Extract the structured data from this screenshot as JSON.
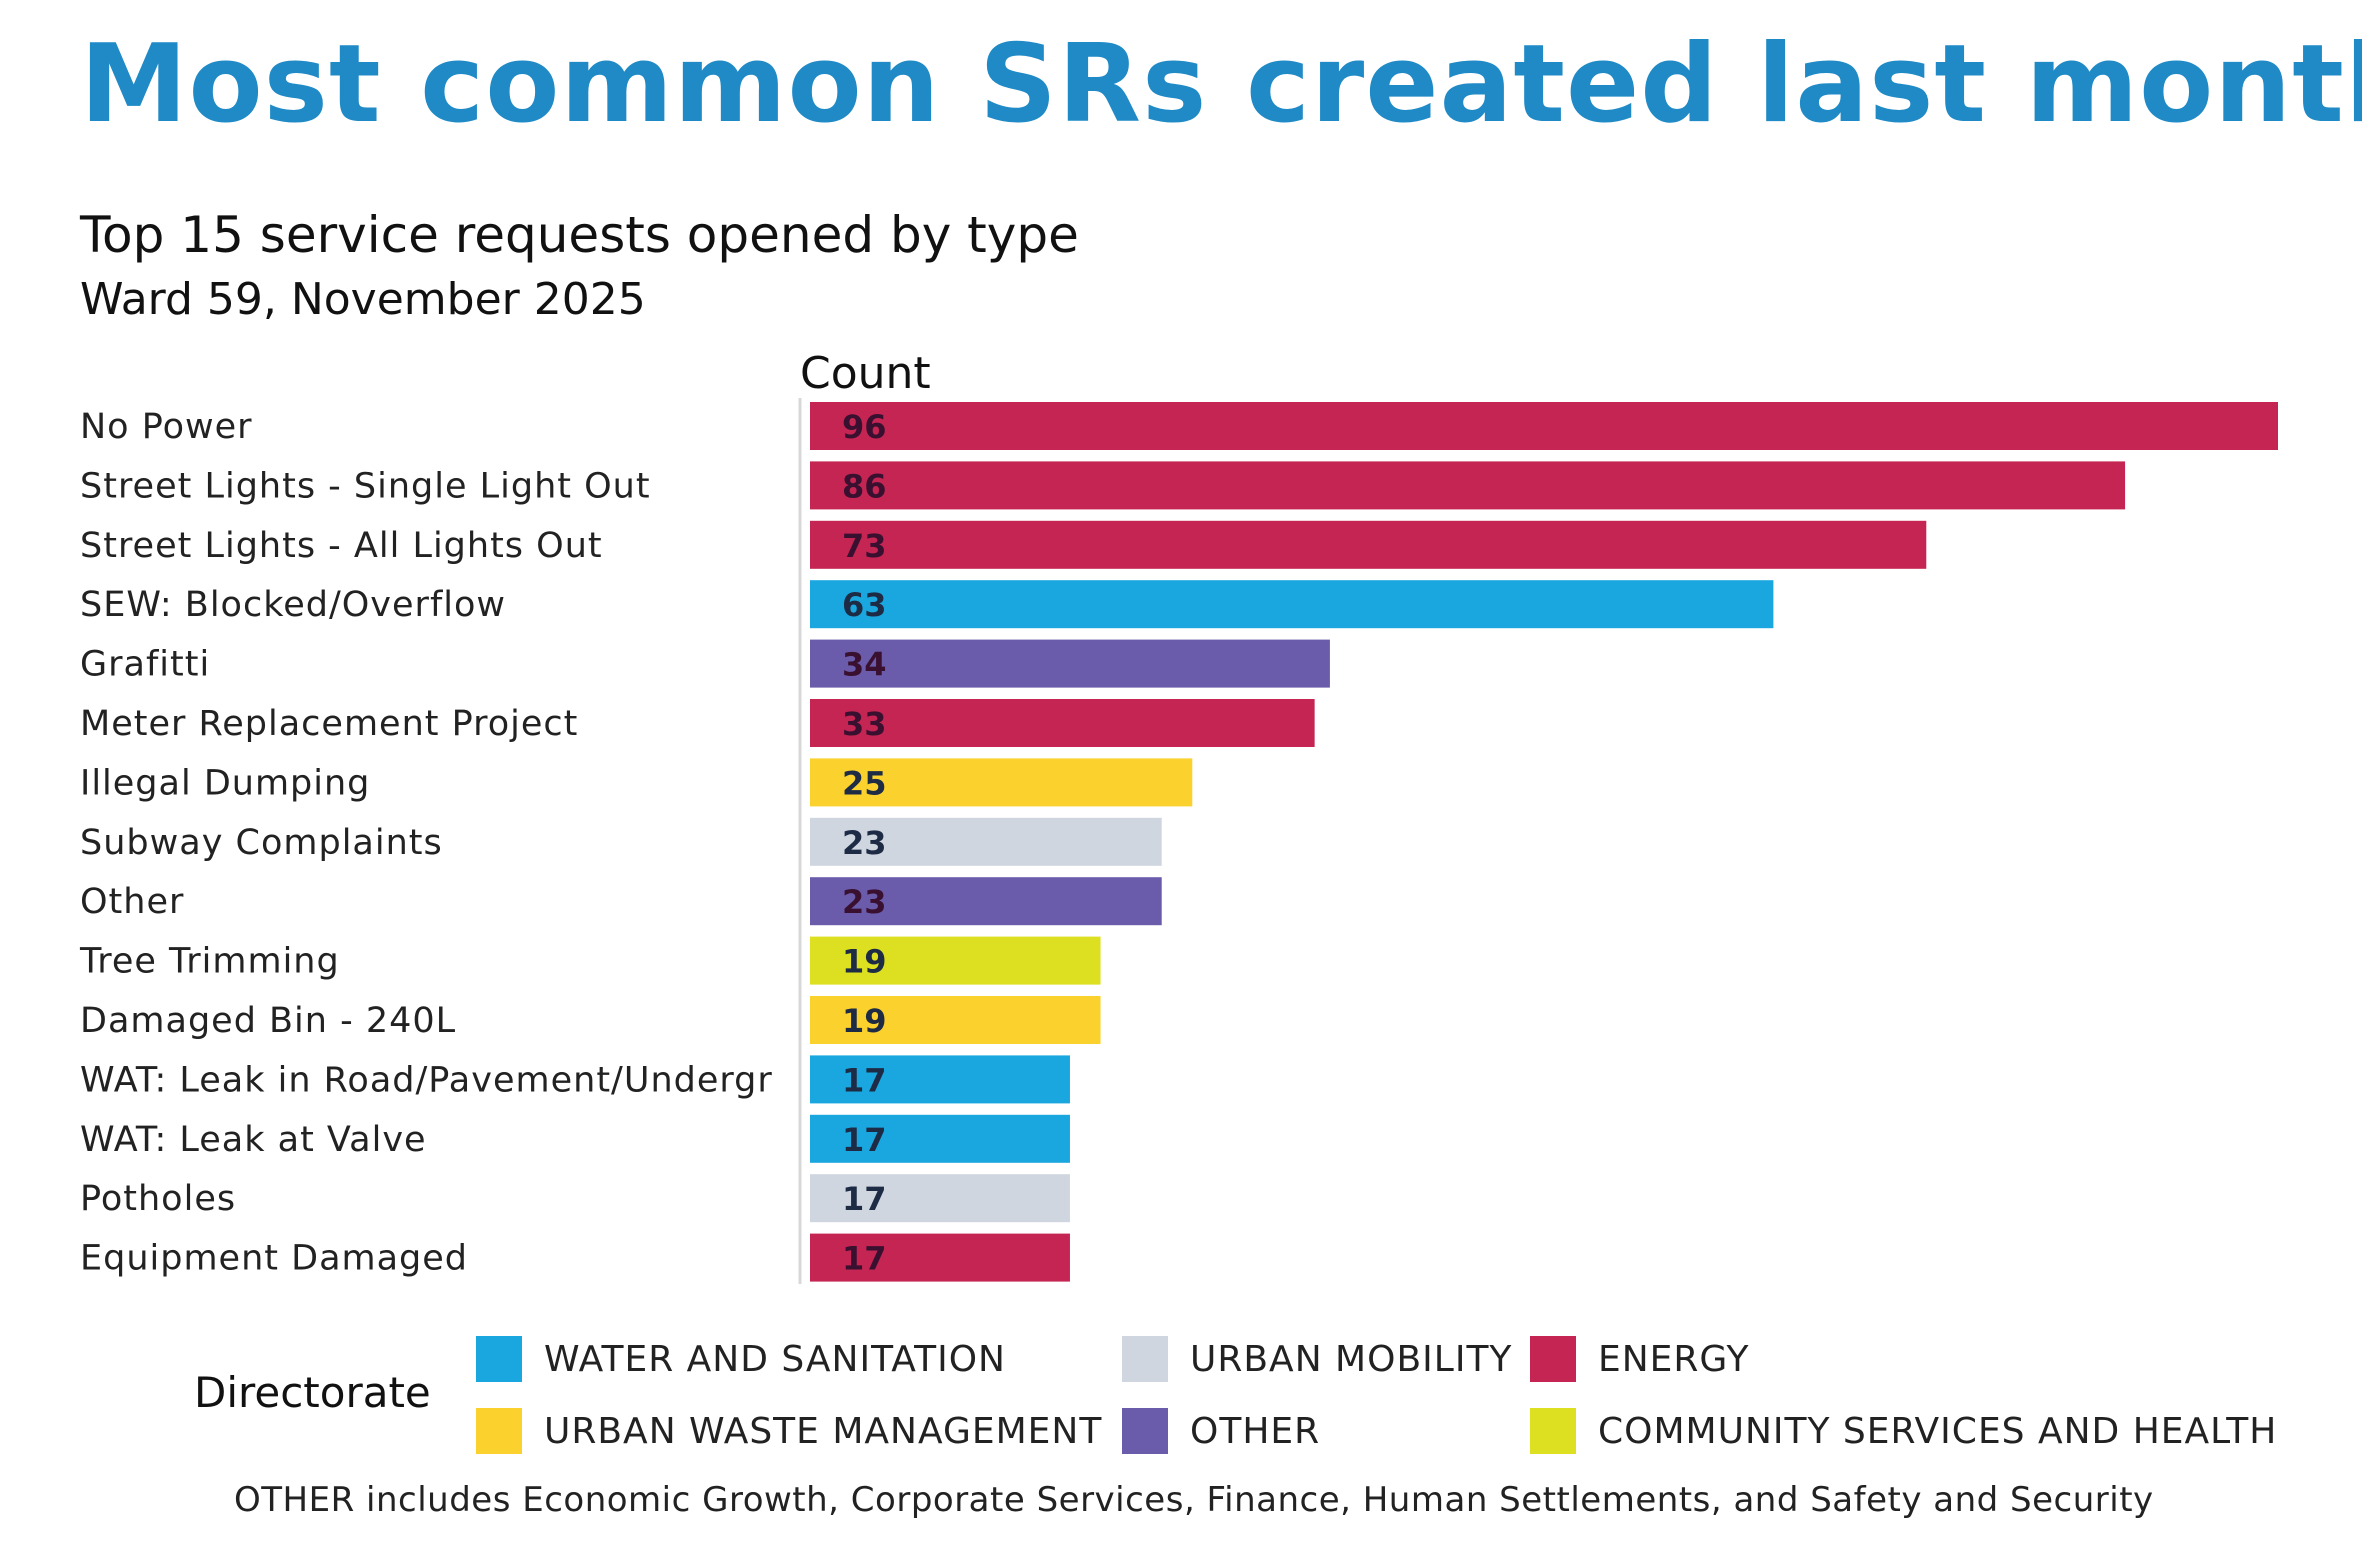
{
  "header": {
    "title": "Most common SRs created last month",
    "subtitle": "Top 15 service requests opened by type",
    "subtitle2": "Ward 59, November 2025"
  },
  "colors": {
    "title": "#1f8ac6",
    "WATER AND SANITATION": "#1aa7df",
    "URBAN MOBILITY": "#cfd6e0",
    "ENERGY": "#c52552",
    "URBAN WASTE MANAGEMENT": "#fbd22d",
    "OTHER": "#6a5bab",
    "COMMUNITY SERVICES AND HEALTH": "#dde021"
  },
  "chart_data": {
    "type": "bar",
    "orientation": "horizontal",
    "xlabel": "Count",
    "xlim": [
      0,
      96
    ],
    "grid": false,
    "categories": [
      "No Power",
      "Street Lights - Single Light Out",
      "Street Lights - All Lights Out",
      "SEW: Blocked/Overflow",
      "Grafitti",
      "Meter Replacement Project",
      "Illegal Dumping",
      "Subway Complaints",
      "Other",
      "Tree Trimming",
      "Damaged Bin - 240L",
      "WAT: Leak in Road/Pavement/Undergr",
      "WAT: Leak at Valve",
      "Potholes",
      "Equipment Damaged"
    ],
    "values": [
      96,
      86,
      73,
      63,
      34,
      33,
      25,
      23,
      23,
      19,
      19,
      17,
      17,
      17,
      17
    ],
    "directorate": [
      "ENERGY",
      "ENERGY",
      "ENERGY",
      "WATER AND SANITATION",
      "OTHER",
      "ENERGY",
      "URBAN WASTE MANAGEMENT",
      "URBAN MOBILITY",
      "OTHER",
      "COMMUNITY SERVICES AND HEALTH",
      "URBAN WASTE MANAGEMENT",
      "WATER AND SANITATION",
      "WATER AND SANITATION",
      "URBAN MOBILITY",
      "ENERGY"
    ]
  },
  "legend": {
    "title": "Directorate",
    "placement": "bottom",
    "items": [
      {
        "label": "WATER AND SANITATION",
        "color": "#1aa7df"
      },
      {
        "label": "URBAN MOBILITY",
        "color": "#cfd6e0"
      },
      {
        "label": "ENERGY",
        "color": "#c52552"
      },
      {
        "label": "URBAN WASTE MANAGEMENT",
        "color": "#fbd22d"
      },
      {
        "label": "OTHER",
        "color": "#6a5bab"
      },
      {
        "label": "COMMUNITY SERVICES AND HEALTH",
        "color": "#dde021"
      }
    ]
  },
  "footnote": "OTHER includes Economic Growth, Corporate Services, Finance, Human Settlements, and Safety and Security"
}
